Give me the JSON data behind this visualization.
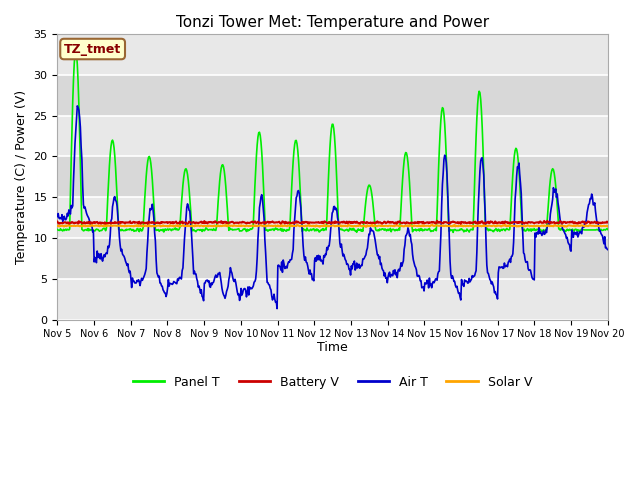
{
  "title": "Tonzi Tower Met: Temperature and Power",
  "xlabel": "Time",
  "ylabel": "Temperature (C) / Power (V)",
  "ylim": [
    0,
    35
  ],
  "fig_bg": "#ffffff",
  "plot_bg": "#f0f0f0",
  "legend_labels": [
    "Panel T",
    "Battery V",
    "Air T",
    "Solar V"
  ],
  "legend_colors": [
    "#00ee00",
    "#cc0000",
    "#0000cc",
    "#ffa500"
  ],
  "dataset_label": "TZ_tmet",
  "xtick_labels": [
    "Nov 5",
    "Nov 6",
    "Nov 7",
    "Nov 8",
    "Nov 9",
    "Nov 10",
    "Nov 11",
    "Nov 12",
    "Nov 13",
    "Nov 14",
    "Nov 15",
    "Nov 16",
    "Nov 17",
    "Nov 18",
    "Nov 19",
    "Nov 20"
  ],
  "ytick_values": [
    0,
    5,
    10,
    15,
    20,
    25,
    30,
    35
  ],
  "panel_peaks": [
    33,
    22,
    20,
    18.5,
    19,
    23,
    22,
    24,
    16.5,
    20.5,
    26,
    28,
    21,
    18.5,
    11
  ],
  "air_peaks": [
    26,
    15,
    14,
    14,
    3,
    15,
    16,
    14,
    11,
    11,
    20,
    20,
    19,
    16,
    15
  ],
  "air_nights": [
    14,
    9,
    6,
    6,
    6,
    5,
    8,
    9,
    8,
    7,
    6,
    6,
    8,
    12,
    12
  ],
  "battery_base": 11.9,
  "solar_base": 11.5
}
